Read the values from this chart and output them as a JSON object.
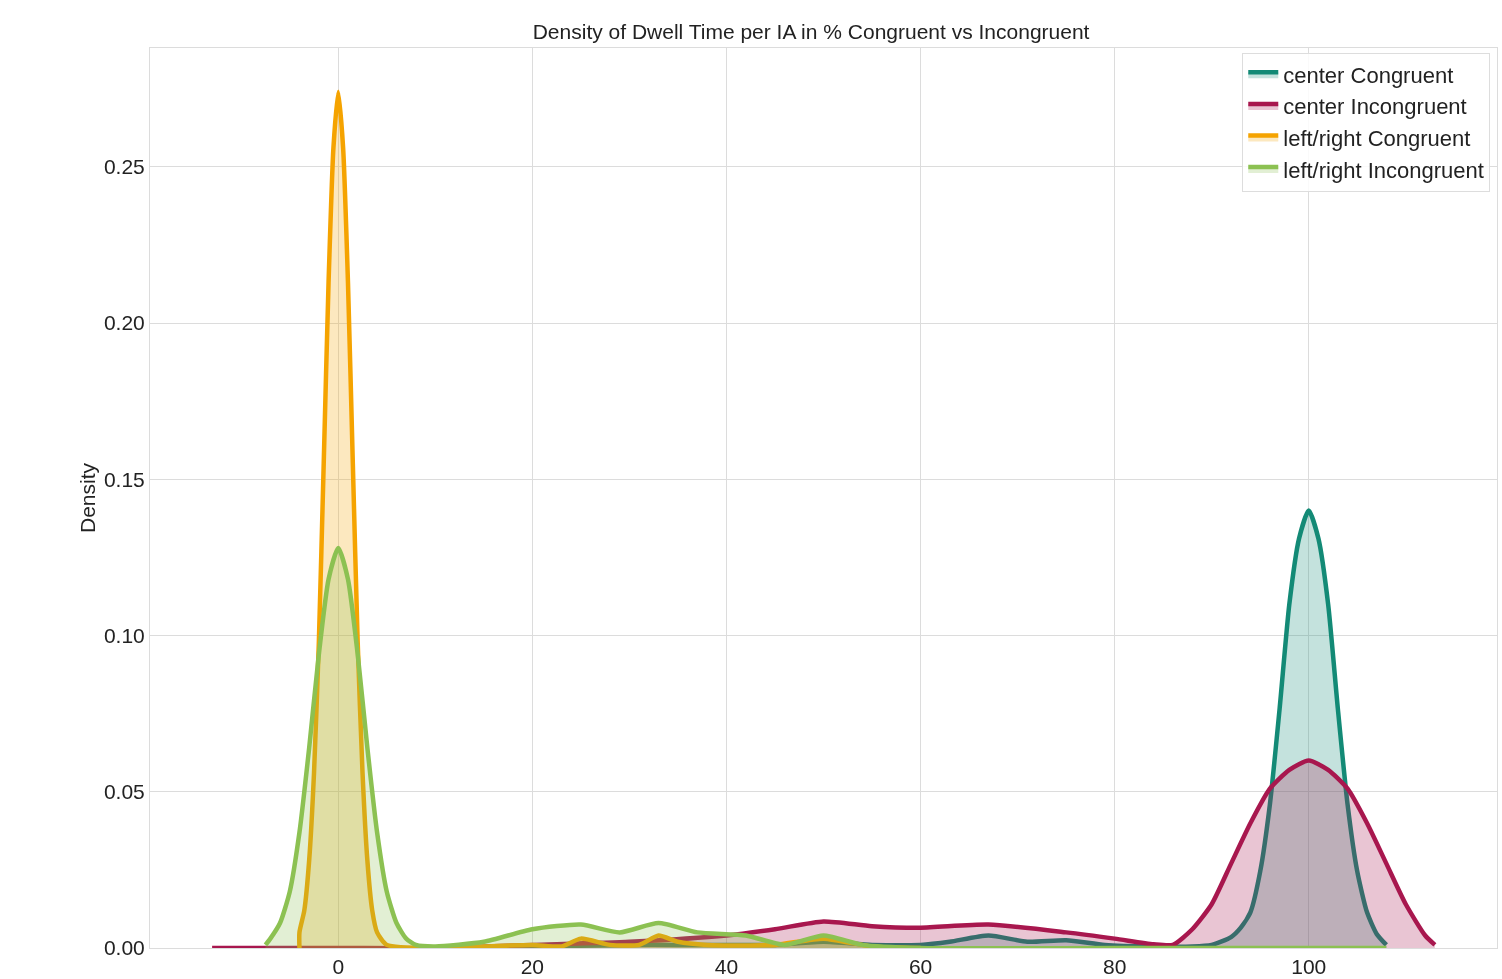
{
  "chart_data": {
    "type": "area",
    "title": "Density of Dwell Time per IA in % Congruent vs Incongruent",
    "ylabel": "Density",
    "xlim": [
      -19.4,
      119.4
    ],
    "ylim": [
      0,
      0.288
    ],
    "xticks": [
      0,
      20,
      40,
      60,
      80,
      100
    ],
    "yticks": [
      {
        "value": 0,
        "label": "0.00"
      },
      {
        "value": 0.05,
        "label": "0.05"
      },
      {
        "value": 0.1,
        "label": "0.10"
      },
      {
        "value": 0.15,
        "label": "0.15"
      },
      {
        "value": 0.2,
        "label": "0.20"
      },
      {
        "value": 0.25,
        "label": "0.25"
      }
    ],
    "grid": true,
    "legend": "top right",
    "marker": "none",
    "line_style": "solid",
    "series": [
      {
        "name": "center Congruent",
        "color": "#138a76",
        "x": [
          10,
          20,
          30,
          35,
          40,
          45,
          50,
          55,
          60,
          63,
          67,
          71,
          75,
          79,
          84,
          88,
          90,
          92,
          93,
          94,
          95,
          96,
          97,
          98,
          99,
          100,
          101,
          102,
          103,
          104,
          105,
          106,
          107,
          108
        ],
        "values": [
          0,
          0.0005,
          0.001,
          0.001,
          0.001,
          0.001,
          0.002,
          0.001,
          0.001,
          0.002,
          0.004,
          0.002,
          0.0025,
          0.001,
          0.0005,
          0.0005,
          0.001,
          0.0035,
          0.0065,
          0.0115,
          0.0245,
          0.046,
          0.0766,
          0.11,
          0.131,
          0.14,
          0.131,
          0.11,
          0.0766,
          0.046,
          0.0245,
          0.0115,
          0.0045,
          0.001
        ]
      },
      {
        "name": "center Incongruent",
        "color": "#a8174e",
        "x": [
          -13,
          0,
          10,
          20,
          30,
          40,
          45,
          50,
          55,
          60,
          67,
          75,
          80,
          84,
          86,
          88,
          90,
          92,
          94,
          96,
          98,
          100,
          102,
          104,
          106,
          108,
          110,
          112,
          113
        ],
        "values": [
          0,
          0,
          0,
          0.001,
          0.002,
          0.004,
          0.006,
          0.0085,
          0.007,
          0.0065,
          0.0075,
          0.005,
          0.003,
          0.0012,
          0.001,
          0.006,
          0.014,
          0.027,
          0.04,
          0.051,
          0.057,
          0.06,
          0.057,
          0.051,
          0.04,
          0.027,
          0.014,
          0.004,
          0.001
        ]
      },
      {
        "name": "left/right Congruent",
        "color": "#f5a300",
        "x": [
          -4,
          -4,
          -3.5,
          -3,
          -2.5,
          -2,
          -1.5,
          -1,
          -0.5,
          0,
          0.5,
          1,
          1.5,
          2,
          2.5,
          3,
          3.5,
          4,
          5,
          10,
          15,
          20,
          23,
          25,
          28,
          31,
          33,
          35,
          38,
          45,
          50,
          55,
          60
        ],
        "values": [
          0,
          0.005,
          0.012,
          0.028,
          0.056,
          0.098,
          0.155,
          0.213,
          0.256,
          0.274,
          0.256,
          0.213,
          0.155,
          0.098,
          0.056,
          0.028,
          0.012,
          0.005,
          0.001,
          0,
          0.0005,
          0.001,
          0.0005,
          0.003,
          0.001,
          0.001,
          0.004,
          0.002,
          0.001,
          0.001,
          0.003,
          0.0005,
          0
        ]
      },
      {
        "name": "left/right Incongruent",
        "color": "#8cc152",
        "x": [
          -7.5,
          -7,
          -6,
          -5,
          -4,
          -3,
          -2,
          -1,
          0,
          1,
          2,
          3,
          4,
          5,
          6,
          7,
          8,
          10,
          15,
          20,
          25,
          29,
          33,
          37,
          42,
          46,
          50,
          54,
          60,
          80,
          108
        ],
        "values": [
          0.001,
          0.003,
          0.008,
          0.018,
          0.037,
          0.064,
          0.094,
          0.118,
          0.128,
          0.118,
          0.094,
          0.064,
          0.037,
          0.018,
          0.008,
          0.003,
          0.001,
          0.0005,
          0.002,
          0.006,
          0.0075,
          0.005,
          0.008,
          0.005,
          0.004,
          0.001,
          0.004,
          0.001,
          0,
          0,
          0
        ]
      }
    ]
  }
}
